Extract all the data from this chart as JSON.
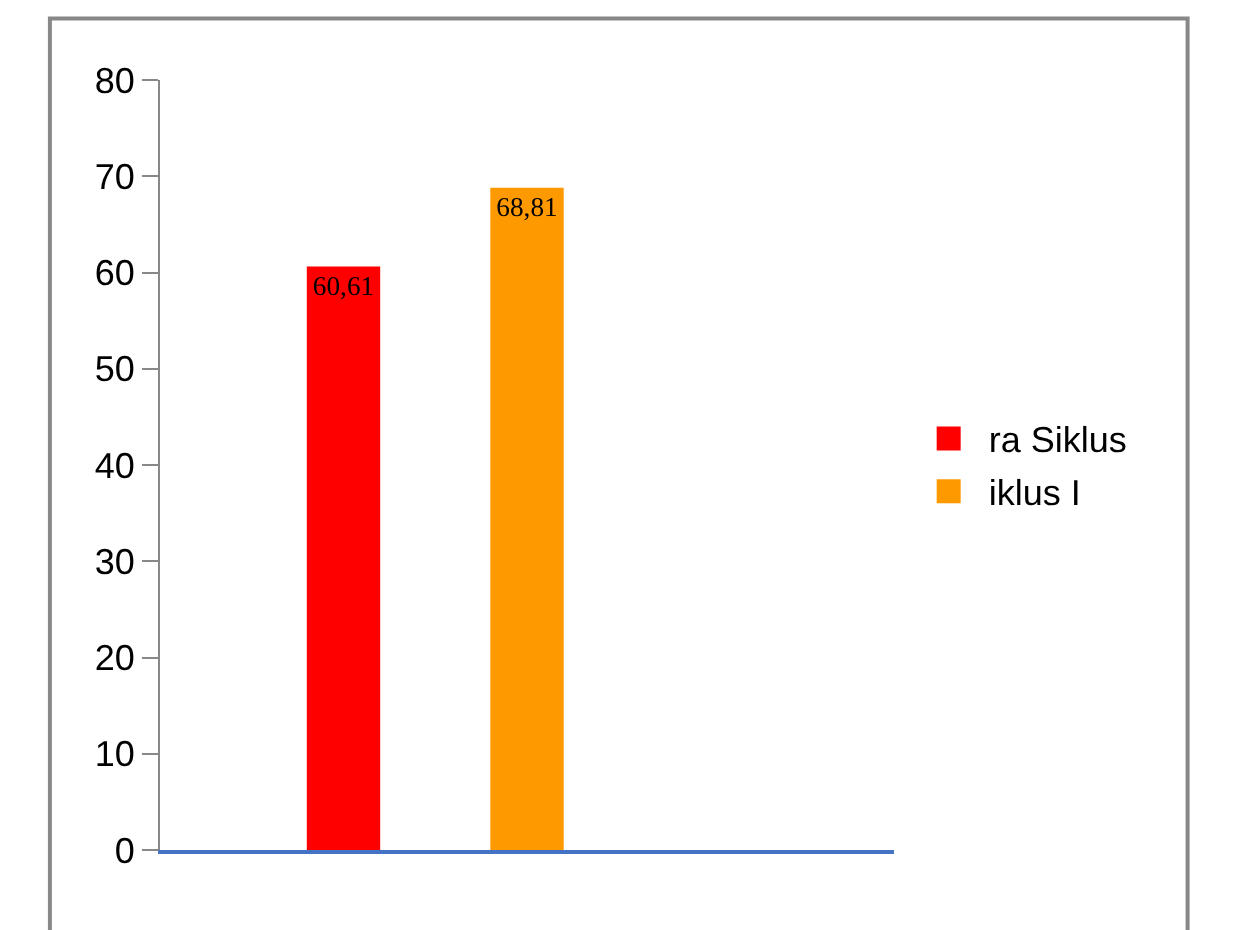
{
  "chart_data": {
    "type": "bar",
    "categories": [
      null
    ],
    "series": [
      {
        "name": "ra Siklus",
        "color": "#ff0000",
        "values": [
          60.61
        ],
        "value_labels": [
          "60,61"
        ]
      },
      {
        "name": "iklus I",
        "color": "#ff9900",
        "values": [
          68.81
        ],
        "value_labels": [
          "68,81"
        ]
      }
    ],
    "ylim": [
      0,
      80
    ],
    "yticks": [
      0,
      10,
      20,
      30,
      40,
      50,
      60,
      70,
      80
    ],
    "legend": "right"
  }
}
